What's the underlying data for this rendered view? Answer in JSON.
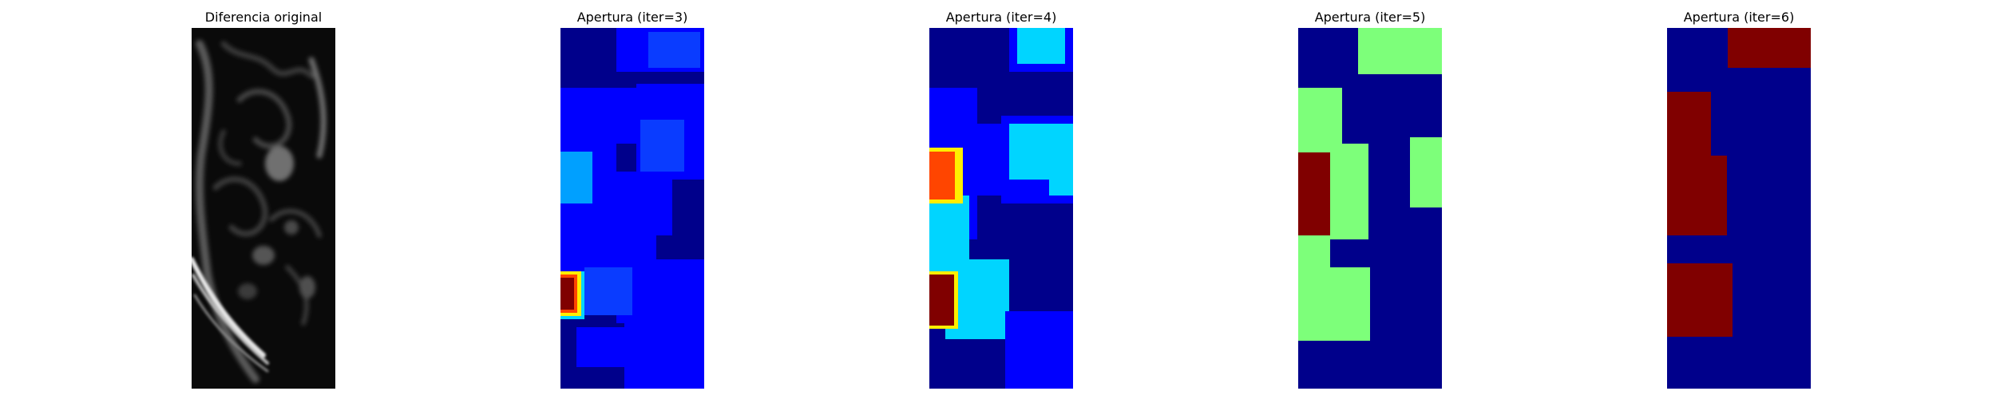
{
  "figure": {
    "panels": [
      {
        "title": "Diferencia original",
        "colormap": "gray"
      },
      {
        "title": "Apertura (iter=3)",
        "colormap": "jet"
      },
      {
        "title": "Apertura (iter=4)",
        "colormap": "jet"
      },
      {
        "title": "Apertura (iter=5)",
        "colormap": "jet"
      },
      {
        "title": "Apertura (iter=6)",
        "colormap": "jet"
      }
    ]
  },
  "colors": {
    "jet_dark_blue": "#00008b",
    "jet_blue": "#0000ff",
    "jet_mid_blue": "#0a3cff",
    "jet_light_blue": "#00a0ff",
    "jet_cyan": "#00d5ff",
    "jet_green": "#7dff7a",
    "jet_yellow": "#ffee00",
    "jet_orange": "#ff4500",
    "jet_dark_red": "#800000"
  }
}
